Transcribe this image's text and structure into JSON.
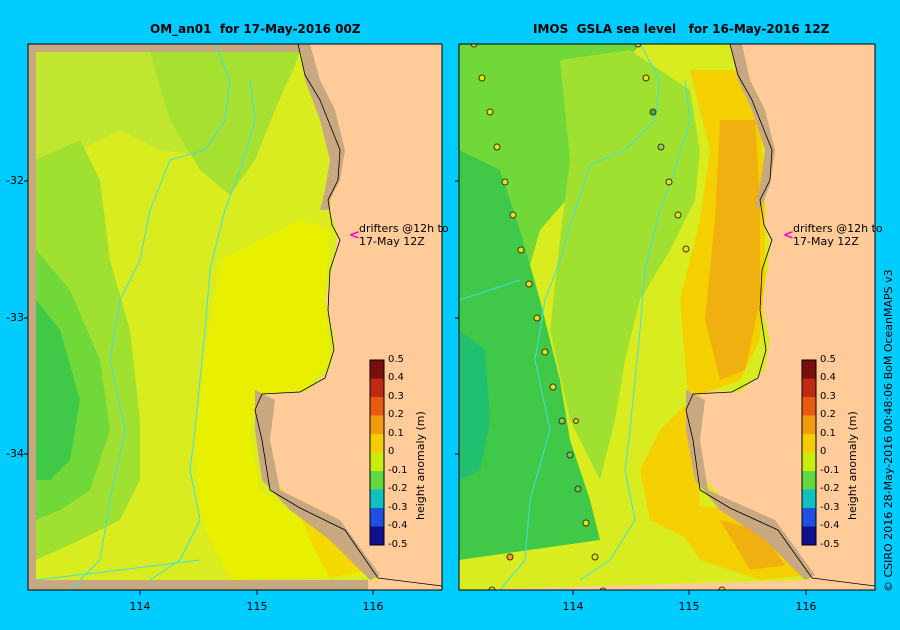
{
  "left_panel": {
    "title": "OM_an01  for 17-May-2016 00Z",
    "drifter_note_line1": "drifters @12h to",
    "drifter_note_line2": "17-May 12Z"
  },
  "right_panel": {
    "title": "IMOS  GSLA sea level   for 16-May-2016 12Z",
    "drifter_note_line1": "drifters @12h to",
    "drifter_note_line2": "17-May 12Z"
  },
  "y_ticks": [
    "-32",
    "-33",
    "-34"
  ],
  "x_ticks": [
    "114",
    "115",
    "116"
  ],
  "colorbar": {
    "title": "height anomaly (m)",
    "labels": [
      "0.5",
      "0.4",
      "0.3",
      "0.2",
      "0.1",
      "0",
      "-0.1",
      "-0.2",
      "-0.3",
      "-0.4",
      "-0.5"
    ],
    "colors": [
      "#7a0f0f",
      "#c02a10",
      "#e85a10",
      "#f09a10",
      "#f5cc00",
      "#e6f000",
      "#a6e830",
      "#40d040",
      "#10c0c0",
      "#2050e0",
      "#101090"
    ]
  },
  "credit": "© CSIRO 2016   28-May-2016 00:48:06 BoM OceanMAPS v3",
  "colors": {
    "background": "#00ccff",
    "land": "#ffcc99",
    "shelf": "#c8a880"
  }
}
